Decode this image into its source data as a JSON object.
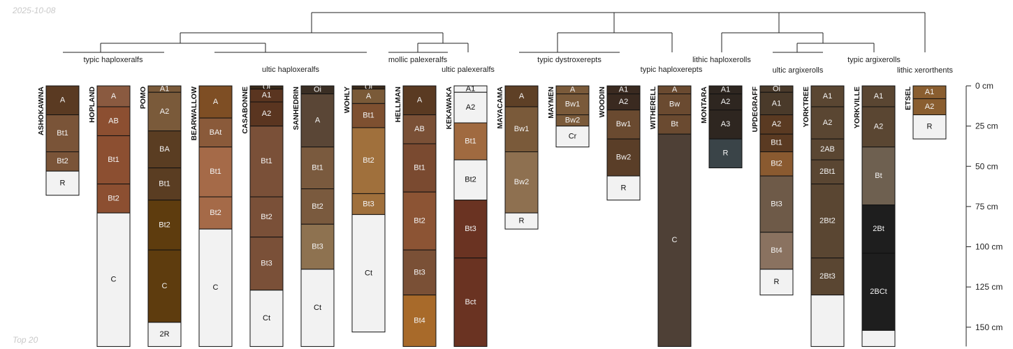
{
  "date_stamp": "2025-10-08",
  "footer_stamp": "Top 20",
  "chart_data": {
    "type": "soil-profile-sketch",
    "depth_axis": {
      "unit": "cm",
      "ticks": [
        0,
        25,
        50,
        75,
        100,
        125,
        150
      ],
      "tick_labels": [
        "0 cm",
        "25 cm",
        "50 cm",
        "75 cm",
        "100 cm",
        "125 cm",
        "150 cm"
      ],
      "visible_range": [
        0,
        162
      ]
    },
    "profiles": [
      {
        "name": "ASHOKAWNA",
        "horizons": [
          {
            "name": "A",
            "top": 0,
            "bottom": 18,
            "color": "#5a3a22"
          },
          {
            "name": "Bt1",
            "top": 18,
            "bottom": 41,
            "color": "#7a5438"
          },
          {
            "name": "Bt2",
            "top": 41,
            "bottom": 53,
            "color": "#7a5438"
          },
          {
            "name": "R",
            "top": 53,
            "bottom": 68,
            "color": "#f2f2f2"
          }
        ]
      },
      {
        "name": "HOPLAND",
        "horizons": [
          {
            "name": "A",
            "top": 0,
            "bottom": 13,
            "color": "#8a5a40"
          },
          {
            "name": "AB",
            "top": 13,
            "bottom": 31,
            "color": "#8c4f31"
          },
          {
            "name": "Bt1",
            "top": 31,
            "bottom": 61,
            "color": "#8c4f31"
          },
          {
            "name": "Bt2",
            "top": 61,
            "bottom": 79,
            "color": "#8c4f31"
          },
          {
            "name": "C",
            "top": 79,
            "bottom": 162,
            "color": "#f2f2f2"
          }
        ]
      },
      {
        "name": "POMO",
        "horizons": [
          {
            "name": "A1",
            "top": 0,
            "bottom": 4,
            "color": "#7a5a3a"
          },
          {
            "name": "A2",
            "top": 4,
            "bottom": 28,
            "color": "#7a5a3a"
          },
          {
            "name": "BA",
            "top": 28,
            "bottom": 51,
            "color": "#5a3d22"
          },
          {
            "name": "Bt1",
            "top": 51,
            "bottom": 71,
            "color": "#5a3d22"
          },
          {
            "name": "Bt2",
            "top": 71,
            "bottom": 102,
            "color": "#5e3c0e"
          },
          {
            "name": "C",
            "top": 102,
            "bottom": 147,
            "color": "#5e3c0e"
          },
          {
            "name": "2R",
            "top": 147,
            "bottom": 162,
            "color": "#f2f2f2"
          }
        ]
      },
      {
        "name": "BEARWALLOW",
        "horizons": [
          {
            "name": "A",
            "top": 0,
            "bottom": 20,
            "color": "#7e4e24"
          },
          {
            "name": "BAt",
            "top": 20,
            "bottom": 38,
            "color": "#8a5a3a"
          },
          {
            "name": "Bt1",
            "top": 38,
            "bottom": 69,
            "color": "#a56a48"
          },
          {
            "name": "Bt2",
            "top": 69,
            "bottom": 89,
            "color": "#a56a48"
          },
          {
            "name": "C",
            "top": 89,
            "bottom": 162,
            "color": "#f2f2f2"
          }
        ]
      },
      {
        "name": "CASABONNE",
        "horizons": [
          {
            "name": "Oi",
            "top": 0,
            "bottom": 2,
            "color": "#3a2a1a"
          },
          {
            "name": "A1",
            "top": 2,
            "bottom": 10,
            "color": "#5a3520"
          },
          {
            "name": "A2",
            "top": 10,
            "bottom": 25,
            "color": "#5a3520"
          },
          {
            "name": "Bt1",
            "top": 25,
            "bottom": 69,
            "color": "#7a5038"
          },
          {
            "name": "Bt2",
            "top": 69,
            "bottom": 94,
            "color": "#7a5038"
          },
          {
            "name": "Bt3",
            "top": 94,
            "bottom": 127,
            "color": "#7a5038"
          },
          {
            "name": "Ct",
            "top": 127,
            "bottom": 162,
            "color": "#f2f2f2"
          }
        ]
      },
      {
        "name": "SANHEDRIN",
        "horizons": [
          {
            "name": "Oi",
            "top": 0,
            "bottom": 5,
            "color": "#3a2e24"
          },
          {
            "name": "A",
            "top": 5,
            "bottom": 38,
            "color": "#5a4636"
          },
          {
            "name": "Bt1",
            "top": 38,
            "bottom": 64,
            "color": "#7a5a3e"
          },
          {
            "name": "Bt2",
            "top": 64,
            "bottom": 86,
            "color": "#7a5a3e"
          },
          {
            "name": "Bt3",
            "top": 86,
            "bottom": 114,
            "color": "#8e7250"
          },
          {
            "name": "Ct",
            "top": 114,
            "bottom": 162,
            "color": "#f2f2f2"
          }
        ]
      },
      {
        "name": "WOHLY",
        "horizons": [
          {
            "name": "Oi",
            "top": 0,
            "bottom": 2,
            "color": "#3a2a1a"
          },
          {
            "name": "A",
            "top": 2,
            "bottom": 11,
            "color": "#7a5a38"
          },
          {
            "name": "Bt1",
            "top": 11,
            "bottom": 26,
            "color": "#7e5030"
          },
          {
            "name": "Bt2",
            "top": 26,
            "bottom": 67,
            "color": "#a0703c"
          },
          {
            "name": "Bt3",
            "top": 67,
            "bottom": 80,
            "color": "#a0703c"
          },
          {
            "name": "Ct",
            "top": 80,
            "bottom": 153,
            "color": "#f2f2f2"
          }
        ]
      },
      {
        "name": "HELLMAN",
        "horizons": [
          {
            "name": "A",
            "top": 0,
            "bottom": 18,
            "color": "#5a3a22"
          },
          {
            "name": "AB",
            "top": 18,
            "bottom": 36,
            "color": "#7a5036"
          },
          {
            "name": "Bt1",
            "top": 36,
            "bottom": 66,
            "color": "#7a4a30"
          },
          {
            "name": "Bt2",
            "top": 66,
            "bottom": 102,
            "color": "#8c5434"
          },
          {
            "name": "Bt3",
            "top": 102,
            "bottom": 130,
            "color": "#7a5036"
          },
          {
            "name": "Bt4",
            "top": 130,
            "bottom": 162,
            "color": "#a86a2a"
          }
        ]
      },
      {
        "name": "KEKAWAKA",
        "horizons": [
          {
            "name": "A1",
            "top": 0,
            "bottom": 4,
            "color": "#f2f2f2"
          },
          {
            "name": "A2",
            "top": 4,
            "bottom": 23,
            "color": "#f2f2f2"
          },
          {
            "name": "Bt1",
            "top": 23,
            "bottom": 46,
            "color": "#a06a40"
          },
          {
            "name": "Bt2",
            "top": 46,
            "bottom": 71,
            "color": "#f2f2f2"
          },
          {
            "name": "Bt3",
            "top": 71,
            "bottom": 107,
            "color": "#6a3322"
          },
          {
            "name": "Bct",
            "top": 107,
            "bottom": 162,
            "color": "#6a3322"
          }
        ]
      },
      {
        "name": "MAYACAMA",
        "horizons": [
          {
            "name": "A",
            "top": 0,
            "bottom": 13,
            "color": "#5e4026"
          },
          {
            "name": "Bw1",
            "top": 13,
            "bottom": 41,
            "color": "#7a5a3a"
          },
          {
            "name": "Bw2",
            "top": 41,
            "bottom": 79,
            "color": "#8e7050"
          },
          {
            "name": "R",
            "top": 79,
            "bottom": 89,
            "color": "#f2f2f2"
          }
        ]
      },
      {
        "name": "MAYMEN",
        "horizons": [
          {
            "name": "A",
            "top": 0,
            "bottom": 5,
            "color": "#7a5a3a"
          },
          {
            "name": "Bw1",
            "top": 5,
            "bottom": 18,
            "color": "#7a5a3a"
          },
          {
            "name": "Bw2",
            "top": 18,
            "bottom": 25,
            "color": "#7a5a3a"
          },
          {
            "name": "Cr",
            "top": 25,
            "bottom": 38,
            "color": "#f2f2f2"
          }
        ]
      },
      {
        "name": "WOODIN",
        "horizons": [
          {
            "name": "A1",
            "top": 0,
            "bottom": 5,
            "color": "#3a2a20"
          },
          {
            "name": "A2",
            "top": 5,
            "bottom": 15,
            "color": "#3a2a20"
          },
          {
            "name": "Bw1",
            "top": 15,
            "bottom": 33,
            "color": "#6a4a30"
          },
          {
            "name": "Bw2",
            "top": 33,
            "bottom": 56,
            "color": "#5a3e28"
          },
          {
            "name": "R",
            "top": 56,
            "bottom": 71,
            "color": "#f2f2f2"
          }
        ]
      },
      {
        "name": "WITHERELL",
        "horizons": [
          {
            "name": "A",
            "top": 0,
            "bottom": 5,
            "color": "#6a4a30"
          },
          {
            "name": "Bw",
            "top": 5,
            "bottom": 18,
            "color": "#6a4a30"
          },
          {
            "name": "Bt",
            "top": 18,
            "bottom": 30,
            "color": "#6a4a30"
          },
          {
            "name": "C",
            "top": 30,
            "bottom": 162,
            "color": "#4e4036"
          }
        ]
      },
      {
        "name": "MONTARA",
        "horizons": [
          {
            "name": "A1",
            "top": 0,
            "bottom": 5,
            "color": "#2e2620"
          },
          {
            "name": "A2",
            "top": 5,
            "bottom": 15,
            "color": "#2e2620"
          },
          {
            "name": "A3",
            "top": 15,
            "bottom": 33,
            "color": "#2e2620"
          },
          {
            "name": "R",
            "top": 33,
            "bottom": 51,
            "color": "#3a4448"
          }
        ]
      },
      {
        "name": "UPDEGRAFF",
        "horizons": [
          {
            "name": "Oi",
            "top": 0,
            "bottom": 4,
            "color": "#4a3a2a"
          },
          {
            "name": "A1",
            "top": 4,
            "bottom": 18,
            "color": "#4a3a2a"
          },
          {
            "name": "A2",
            "top": 18,
            "bottom": 30,
            "color": "#5a3a22"
          },
          {
            "name": "Bt1",
            "top": 30,
            "bottom": 41,
            "color": "#5a3a22"
          },
          {
            "name": "Bt2",
            "top": 41,
            "bottom": 56,
            "color": "#8a5a30"
          },
          {
            "name": "Bt3",
            "top": 56,
            "bottom": 91,
            "color": "#6e5a48"
          },
          {
            "name": "Bt4",
            "top": 91,
            "bottom": 114,
            "color": "#8a7260"
          },
          {
            "name": "R",
            "top": 114,
            "bottom": 130,
            "color": "#f2f2f2"
          }
        ]
      },
      {
        "name": "YORKTREE",
        "horizons": [
          {
            "name": "A1",
            "top": 0,
            "bottom": 13,
            "color": "#5a4632"
          },
          {
            "name": "A2",
            "top": 13,
            "bottom": 33,
            "color": "#5a4632"
          },
          {
            "name": "2AB",
            "top": 33,
            "bottom": 46,
            "color": "#5a4632"
          },
          {
            "name": "2Bt1",
            "top": 46,
            "bottom": 61,
            "color": "#5a4632"
          },
          {
            "name": "2Bt2",
            "top": 61,
            "bottom": 107,
            "color": "#5a4632"
          },
          {
            "name": "2Bt3",
            "top": 107,
            "bottom": 130,
            "color": "#5a4632"
          },
          {
            "name": "",
            "top": 130,
            "bottom": 162,
            "color": "#f2f2f2"
          }
        ]
      },
      {
        "name": "YORKVILLE",
        "horizons": [
          {
            "name": "A1",
            "top": 0,
            "bottom": 13,
            "color": "#5a4632"
          },
          {
            "name": "A2",
            "top": 13,
            "bottom": 38,
            "color": "#5a4632"
          },
          {
            "name": "Bt",
            "top": 38,
            "bottom": 74,
            "color": "#6e6050"
          },
          {
            "name": "2Bt",
            "top": 74,
            "bottom": 104,
            "color": "#1e1e1e"
          },
          {
            "name": "2BCt",
            "top": 104,
            "bottom": 152,
            "color": "#1e1e1e"
          },
          {
            "name": "",
            "top": 152,
            "bottom": 162,
            "color": "#f2f2f2"
          }
        ]
      },
      {
        "name": "ETSEL",
        "horizons": [
          {
            "name": "A1",
            "top": 0,
            "bottom": 8,
            "color": "#8a5e30"
          },
          {
            "name": "A2",
            "top": 8,
            "bottom": 18,
            "color": "#8a5e30"
          },
          {
            "name": "R",
            "top": 18,
            "bottom": 33,
            "color": "#f2f2f2"
          }
        ]
      }
    ],
    "group_labels": [
      "typic haploxeralfs",
      "ultic haploxeralfs",
      "mollic palexeralfs",
      "ultic palexeralfs",
      "typic dystroxerepts",
      "typic haploxerepts",
      "lithic haploxerolls",
      "ultic argixerolls",
      "typic argixerolls",
      "lithic xerorthents"
    ]
  }
}
